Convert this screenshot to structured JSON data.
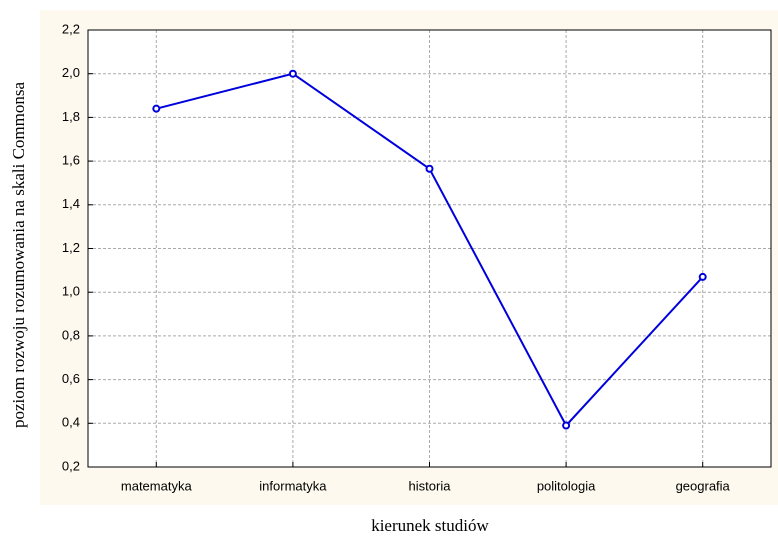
{
  "chart_data": {
    "type": "line",
    "xlabel": "kierunek studiów",
    "ylabel": "poziom rozwoju rozumowania na skali Commonsa",
    "categories": [
      "matematyka",
      "informatyka",
      "historia",
      "politologia",
      "geografia"
    ],
    "series": [
      {
        "color": "#0000dd",
        "values": [
          1.84,
          2.0,
          1.565,
          0.39,
          1.07
        ]
      }
    ],
    "ylim": [
      0.2,
      2.2
    ],
    "yticks": [
      {
        "value": 0.2,
        "label": "0,2"
      },
      {
        "value": 0.4,
        "label": "0,4"
      },
      {
        "value": 0.6,
        "label": "0,6"
      },
      {
        "value": 0.8,
        "label": "0,8"
      },
      {
        "value": 1.0,
        "label": "1,0"
      },
      {
        "value": 1.2,
        "label": "1,2"
      },
      {
        "value": 1.4,
        "label": "1,4"
      },
      {
        "value": 1.6,
        "label": "1,6"
      },
      {
        "value": 1.8,
        "label": "1,8"
      },
      {
        "value": 2.0,
        "label": "2,0"
      },
      {
        "value": 2.2,
        "label": "2,2"
      }
    ],
    "grid": true
  }
}
